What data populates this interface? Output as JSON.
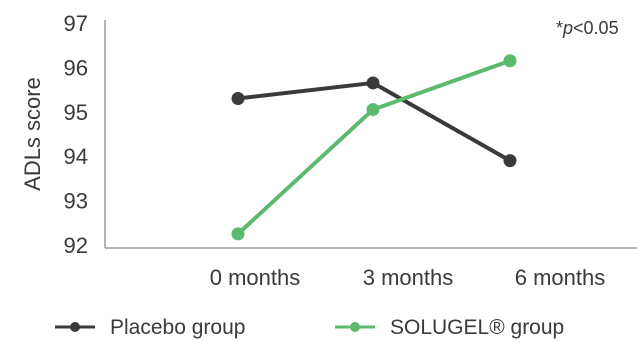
{
  "chart_data": {
    "type": "line",
    "categories": [
      "0 months",
      "3 months",
      "6 months"
    ],
    "series": [
      {
        "name": "Placebo group",
        "values": [
          95.3,
          95.65,
          93.9
        ],
        "color": "#3a3a3a"
      },
      {
        "name": "SOLUGEL® group",
        "values": [
          92.25,
          95.05,
          96.15
        ],
        "color": "#5cba6e"
      }
    ],
    "ylabel": "ADLs score",
    "xlabel": "",
    "ylim": [
      92,
      97
    ],
    "yticks": [
      92,
      93,
      94,
      95,
      96,
      97
    ],
    "annotation_prefix": "*",
    "annotation_italic": "p",
    "annotation_suffix": "<0.05",
    "grid": false,
    "legend_position": "bottom"
  }
}
